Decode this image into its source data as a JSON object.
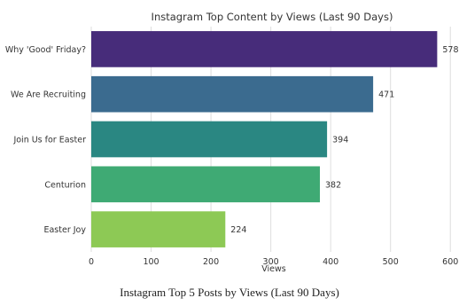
{
  "chart_data": {
    "type": "bar",
    "orientation": "horizontal",
    "title": "Instagram Top Content by Views (Last 90 Days)",
    "xlabel": "Views",
    "ylabel": "",
    "categories": [
      "Why 'Good' Friday?",
      "We Are Recruiting",
      "Join Us for Easter",
      "Centurion",
      "Easter Joy"
    ],
    "values": [
      578,
      471,
      394,
      382,
      224
    ],
    "data_labels": [
      "578",
      "471",
      "394",
      "382",
      "224"
    ],
    "colors": [
      "#472c7a",
      "#3b6b8f",
      "#2a8782",
      "#3faa74",
      "#8dc955"
    ],
    "xlim": [
      0,
      610
    ],
    "xticks": [
      0,
      100,
      200,
      300,
      400,
      500,
      600
    ],
    "xtick_labels": [
      "0",
      "100",
      "200",
      "300",
      "400",
      "500",
      "600"
    ],
    "grid": "vertical",
    "legend": "none"
  },
  "caption": "Instagram Top 5 Posts by Views (Last 90 Days)"
}
